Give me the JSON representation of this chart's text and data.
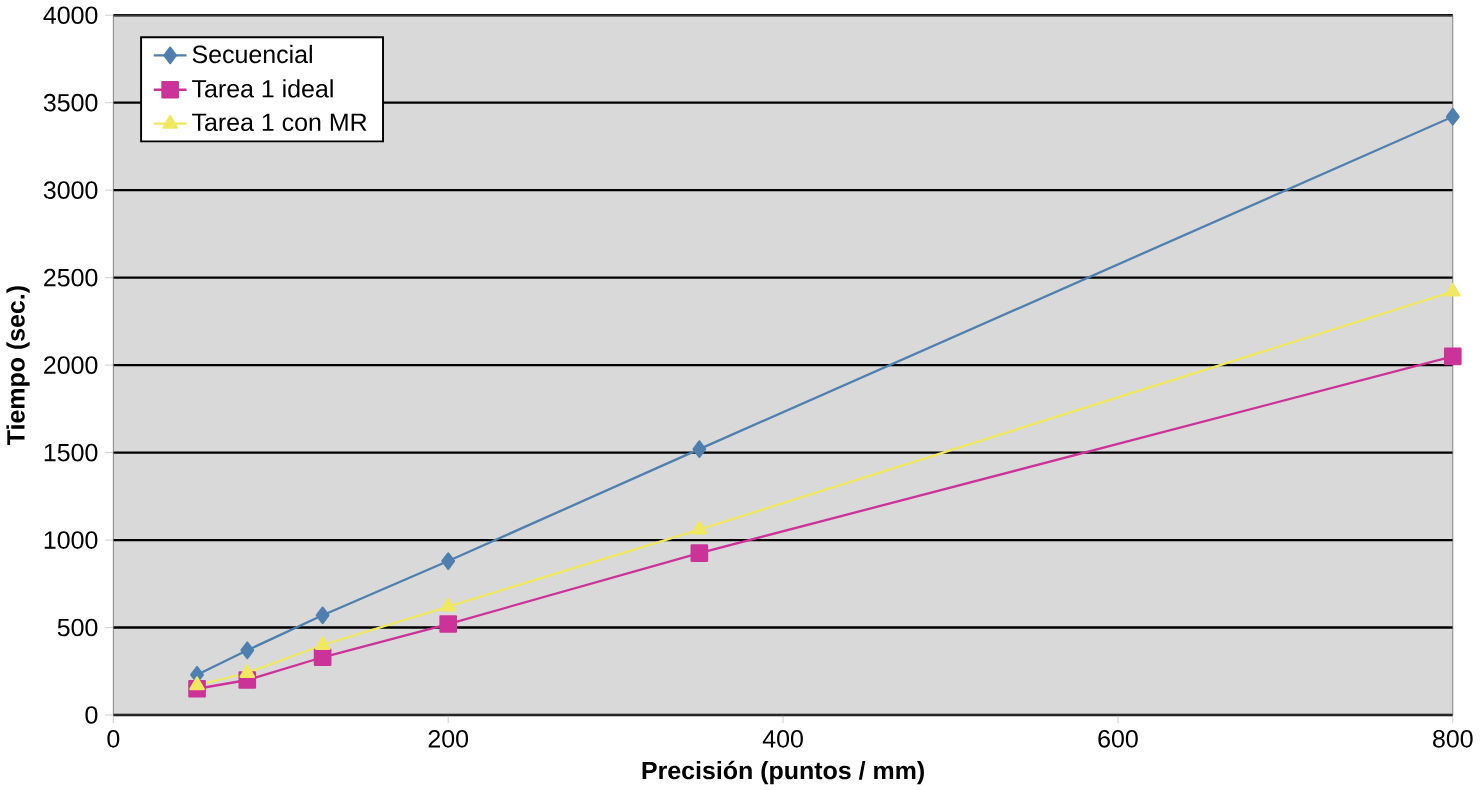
{
  "chart_data": {
    "type": "line",
    "xlabel": "Precisión (puntos / mm)",
    "ylabel": "Tiempo (sec.)",
    "x": [
      50,
      80,
      125,
      200,
      350,
      800
    ],
    "series": [
      {
        "name": "Secuencial",
        "color": "#4f7fae",
        "marker": "diamond",
        "values": [
          230,
          370,
          570,
          880,
          1520,
          3420
        ]
      },
      {
        "name": "Tarea 1 ideal",
        "color": "#cc3399",
        "marker": "square",
        "values": [
          150,
          200,
          330,
          520,
          925,
          2050
        ]
      },
      {
        "name": "Tarea 1 con MR",
        "color": "#f0e860",
        "marker": "triangle",
        "values": [
          170,
          240,
          400,
          620,
          1060,
          2420
        ]
      }
    ],
    "xlim": [
      0,
      800
    ],
    "xticks": [
      0,
      200,
      400,
      600,
      800
    ],
    "ylim": [
      0,
      4000
    ],
    "yticks": [
      0,
      500,
      1000,
      1500,
      2000,
      2500,
      3000,
      3500,
      4000
    ],
    "grid": "y",
    "legend": "top left"
  }
}
